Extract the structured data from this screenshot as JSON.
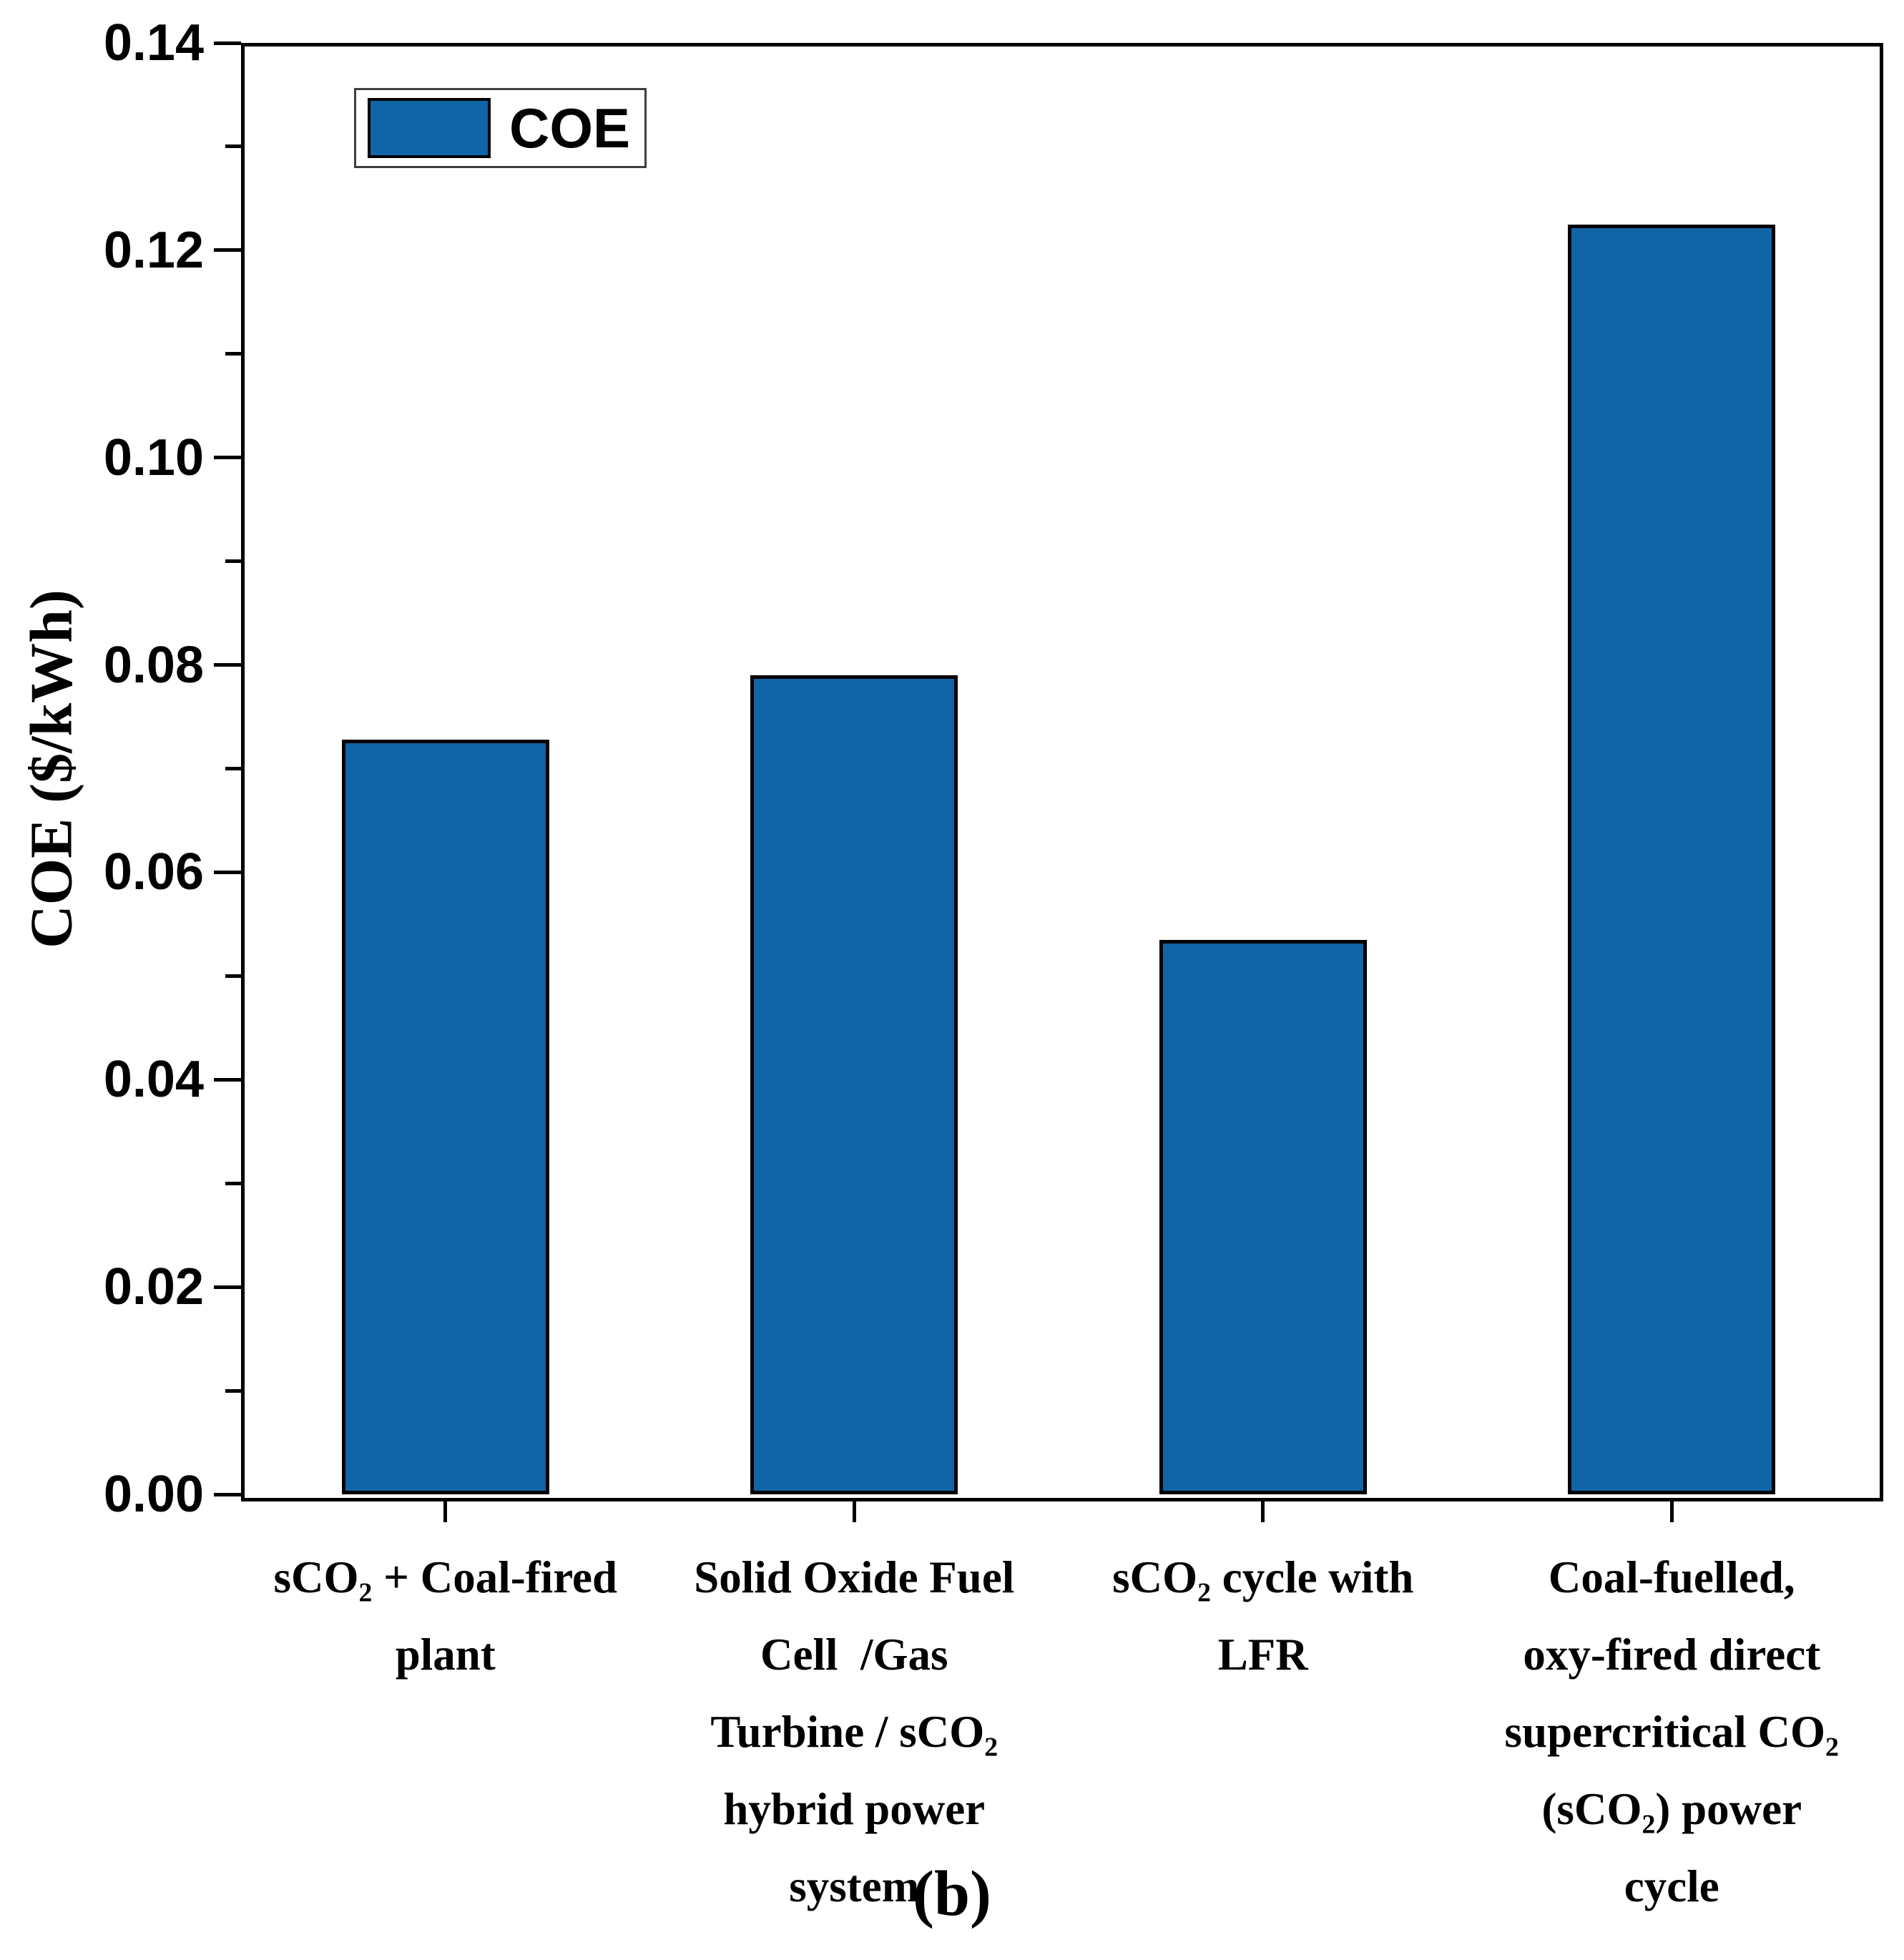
{
  "figure": {
    "caption": "(b)"
  },
  "legend": {
    "label": "COE"
  },
  "y_axis": {
    "title": "COE ($/kWh)",
    "tick_labels": [
      "0.00",
      "0.02",
      "0.04",
      "0.06",
      "0.08",
      "0.10",
      "0.12",
      "0.14"
    ]
  },
  "colors": {
    "bar_fill": "#1065A7",
    "bar_border": "#000000",
    "axis": "#000000",
    "legend_border": "#3f3f3f"
  },
  "chart_data": {
    "type": "bar",
    "title": "",
    "xlabel": "",
    "ylabel": "COE ($/kWh)",
    "ylim": [
      0,
      0.14
    ],
    "ytick_values": [
      0,
      0.02,
      0.04,
      0.06,
      0.08,
      0.1,
      0.12,
      0.14
    ],
    "ytick_labels": [
      "0.00",
      "0.02",
      "0.04",
      "0.06",
      "0.08",
      "0.10",
      "0.12",
      "0.14"
    ],
    "minor_tick_step": 0.01,
    "grid": false,
    "legend_entries": [
      "COE"
    ],
    "legend_position": "top-left-inside",
    "categories": [
      "sCO₂ + Coal-fired plant",
      "Solid Oxide Fuel Cell  /Gas Turbine / sCO₂ hybrid power system",
      "sCO₂ cycle with LFR",
      "Coal-fuelled, oxy-fired direct supercritical CO₂ (sCO₂) power cycle"
    ],
    "category_lines": [
      [
        "sCO₂ + Coal-fired",
        "plant"
      ],
      [
        "Solid Oxide Fuel",
        "Cell  /Gas",
        "Turbine / sCO₂",
        "hybrid power",
        "system"
      ],
      [
        "sCO₂ cycle with",
        "LFR"
      ],
      [
        "Coal-fuelled,",
        "oxy-fired direct",
        "supercritical CO₂",
        "(sCO₂) power",
        "cycle"
      ]
    ],
    "series": [
      {
        "name": "COE",
        "values": [
          0.0728,
          0.079,
          0.0535,
          0.1225
        ]
      }
    ],
    "values": [
      0.0728,
      0.079,
      0.0535,
      0.1225
    ]
  }
}
